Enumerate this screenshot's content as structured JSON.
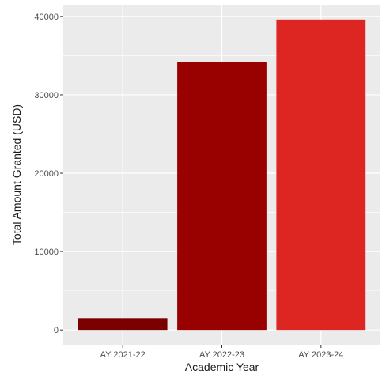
{
  "chart_data": {
    "type": "bar",
    "title": "",
    "xlabel": "Academic Year",
    "ylabel": "Total Amount Granted (USD)",
    "categories": [
      "AY 2021-22",
      "AY 2022-23",
      "AY 2023-24"
    ],
    "values": [
      1500,
      34200,
      39600
    ],
    "colors": [
      "#7b0000",
      "#990000",
      "#dd2622"
    ],
    "ylim": [
      -1900,
      41500
    ],
    "yticks": [
      0,
      10000,
      20000,
      30000,
      40000
    ],
    "ytick_labels": [
      "0",
      "10000",
      "20000",
      "30000",
      "40000"
    ],
    "grid": true,
    "legend": "none",
    "panel_background": "#ebebeb",
    "gridline_color": "#ffffff"
  }
}
